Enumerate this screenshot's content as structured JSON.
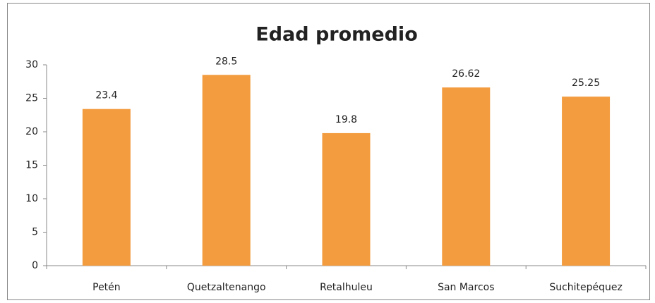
{
  "chart_data": {
    "type": "bar",
    "title": "Edad promedio",
    "categories": [
      "Petén",
      "Quetzaltenango",
      "Retalhuleu",
      "San Marcos",
      "Suchitepéquez"
    ],
    "values": [
      23.4,
      28.5,
      19.8,
      26.62,
      25.25
    ],
    "color": "#f39c3f",
    "ylim": [
      0,
      30
    ],
    "yticks": [
      0,
      5,
      10,
      15,
      20,
      25,
      30
    ],
    "grid": false,
    "data_labels": true
  }
}
